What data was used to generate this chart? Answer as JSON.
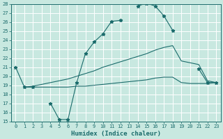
{
  "title": "",
  "xlabel": "Humidex (Indice chaleur)",
  "xlim": [
    -0.5,
    23.5
  ],
  "ylim": [
    15,
    28
  ],
  "xticks": [
    0,
    1,
    2,
    3,
    4,
    5,
    6,
    7,
    8,
    9,
    10,
    11,
    12,
    13,
    14,
    15,
    16,
    17,
    18,
    19,
    20,
    21,
    22,
    23
  ],
  "yticks": [
    15,
    16,
    17,
    18,
    19,
    20,
    21,
    22,
    23,
    24,
    25,
    26,
    27,
    28
  ],
  "bg_color": "#c8e8e0",
  "line_color": "#1a6b6b",
  "grid_color": "#ffffff",
  "line1": {
    "segments": [
      {
        "x": [
          0,
          1,
          2
        ],
        "y": [
          21.0,
          18.8,
          18.8
        ]
      },
      {
        "x": [
          4,
          5,
          6,
          7,
          8,
          9,
          10,
          11,
          12
        ],
        "y": [
          17.0,
          15.2,
          15.2,
          19.3,
          22.5,
          23.8,
          24.7,
          26.1,
          26.2
        ]
      },
      {
        "x": [
          14,
          15,
          16,
          17,
          18
        ],
        "y": [
          27.8,
          28.1,
          27.8,
          26.7,
          25.1
        ]
      },
      {
        "x": [
          21,
          22,
          23
        ],
        "y": [
          20.8,
          19.3,
          19.3
        ]
      }
    ]
  },
  "line2": {
    "segments": [
      {
        "x": [
          1,
          2,
          3,
          4,
          5,
          6,
          7,
          8,
          9,
          10,
          11,
          12,
          13,
          14,
          15,
          16,
          17,
          18,
          19,
          20,
          21,
          22,
          23
        ],
        "y": [
          18.8,
          18.9,
          19.1,
          19.3,
          19.5,
          19.7,
          20.0,
          20.3,
          20.6,
          21.0,
          21.3,
          21.6,
          21.9,
          22.2,
          22.5,
          22.9,
          23.2,
          23.4,
          21.7,
          21.5,
          21.3,
          19.5,
          19.3
        ]
      }
    ]
  },
  "line3": {
    "segments": [
      {
        "x": [
          1,
          2,
          3,
          4,
          5,
          6,
          7,
          8,
          9,
          10,
          11,
          12,
          13,
          14,
          15,
          16,
          17,
          18,
          19,
          20,
          21,
          22,
          23
        ],
        "y": [
          18.8,
          18.8,
          18.8,
          18.8,
          18.8,
          18.8,
          18.9,
          18.9,
          19.0,
          19.1,
          19.2,
          19.3,
          19.4,
          19.5,
          19.6,
          19.8,
          19.9,
          19.9,
          19.3,
          19.2,
          19.2,
          19.2,
          19.3
        ]
      }
    ]
  }
}
